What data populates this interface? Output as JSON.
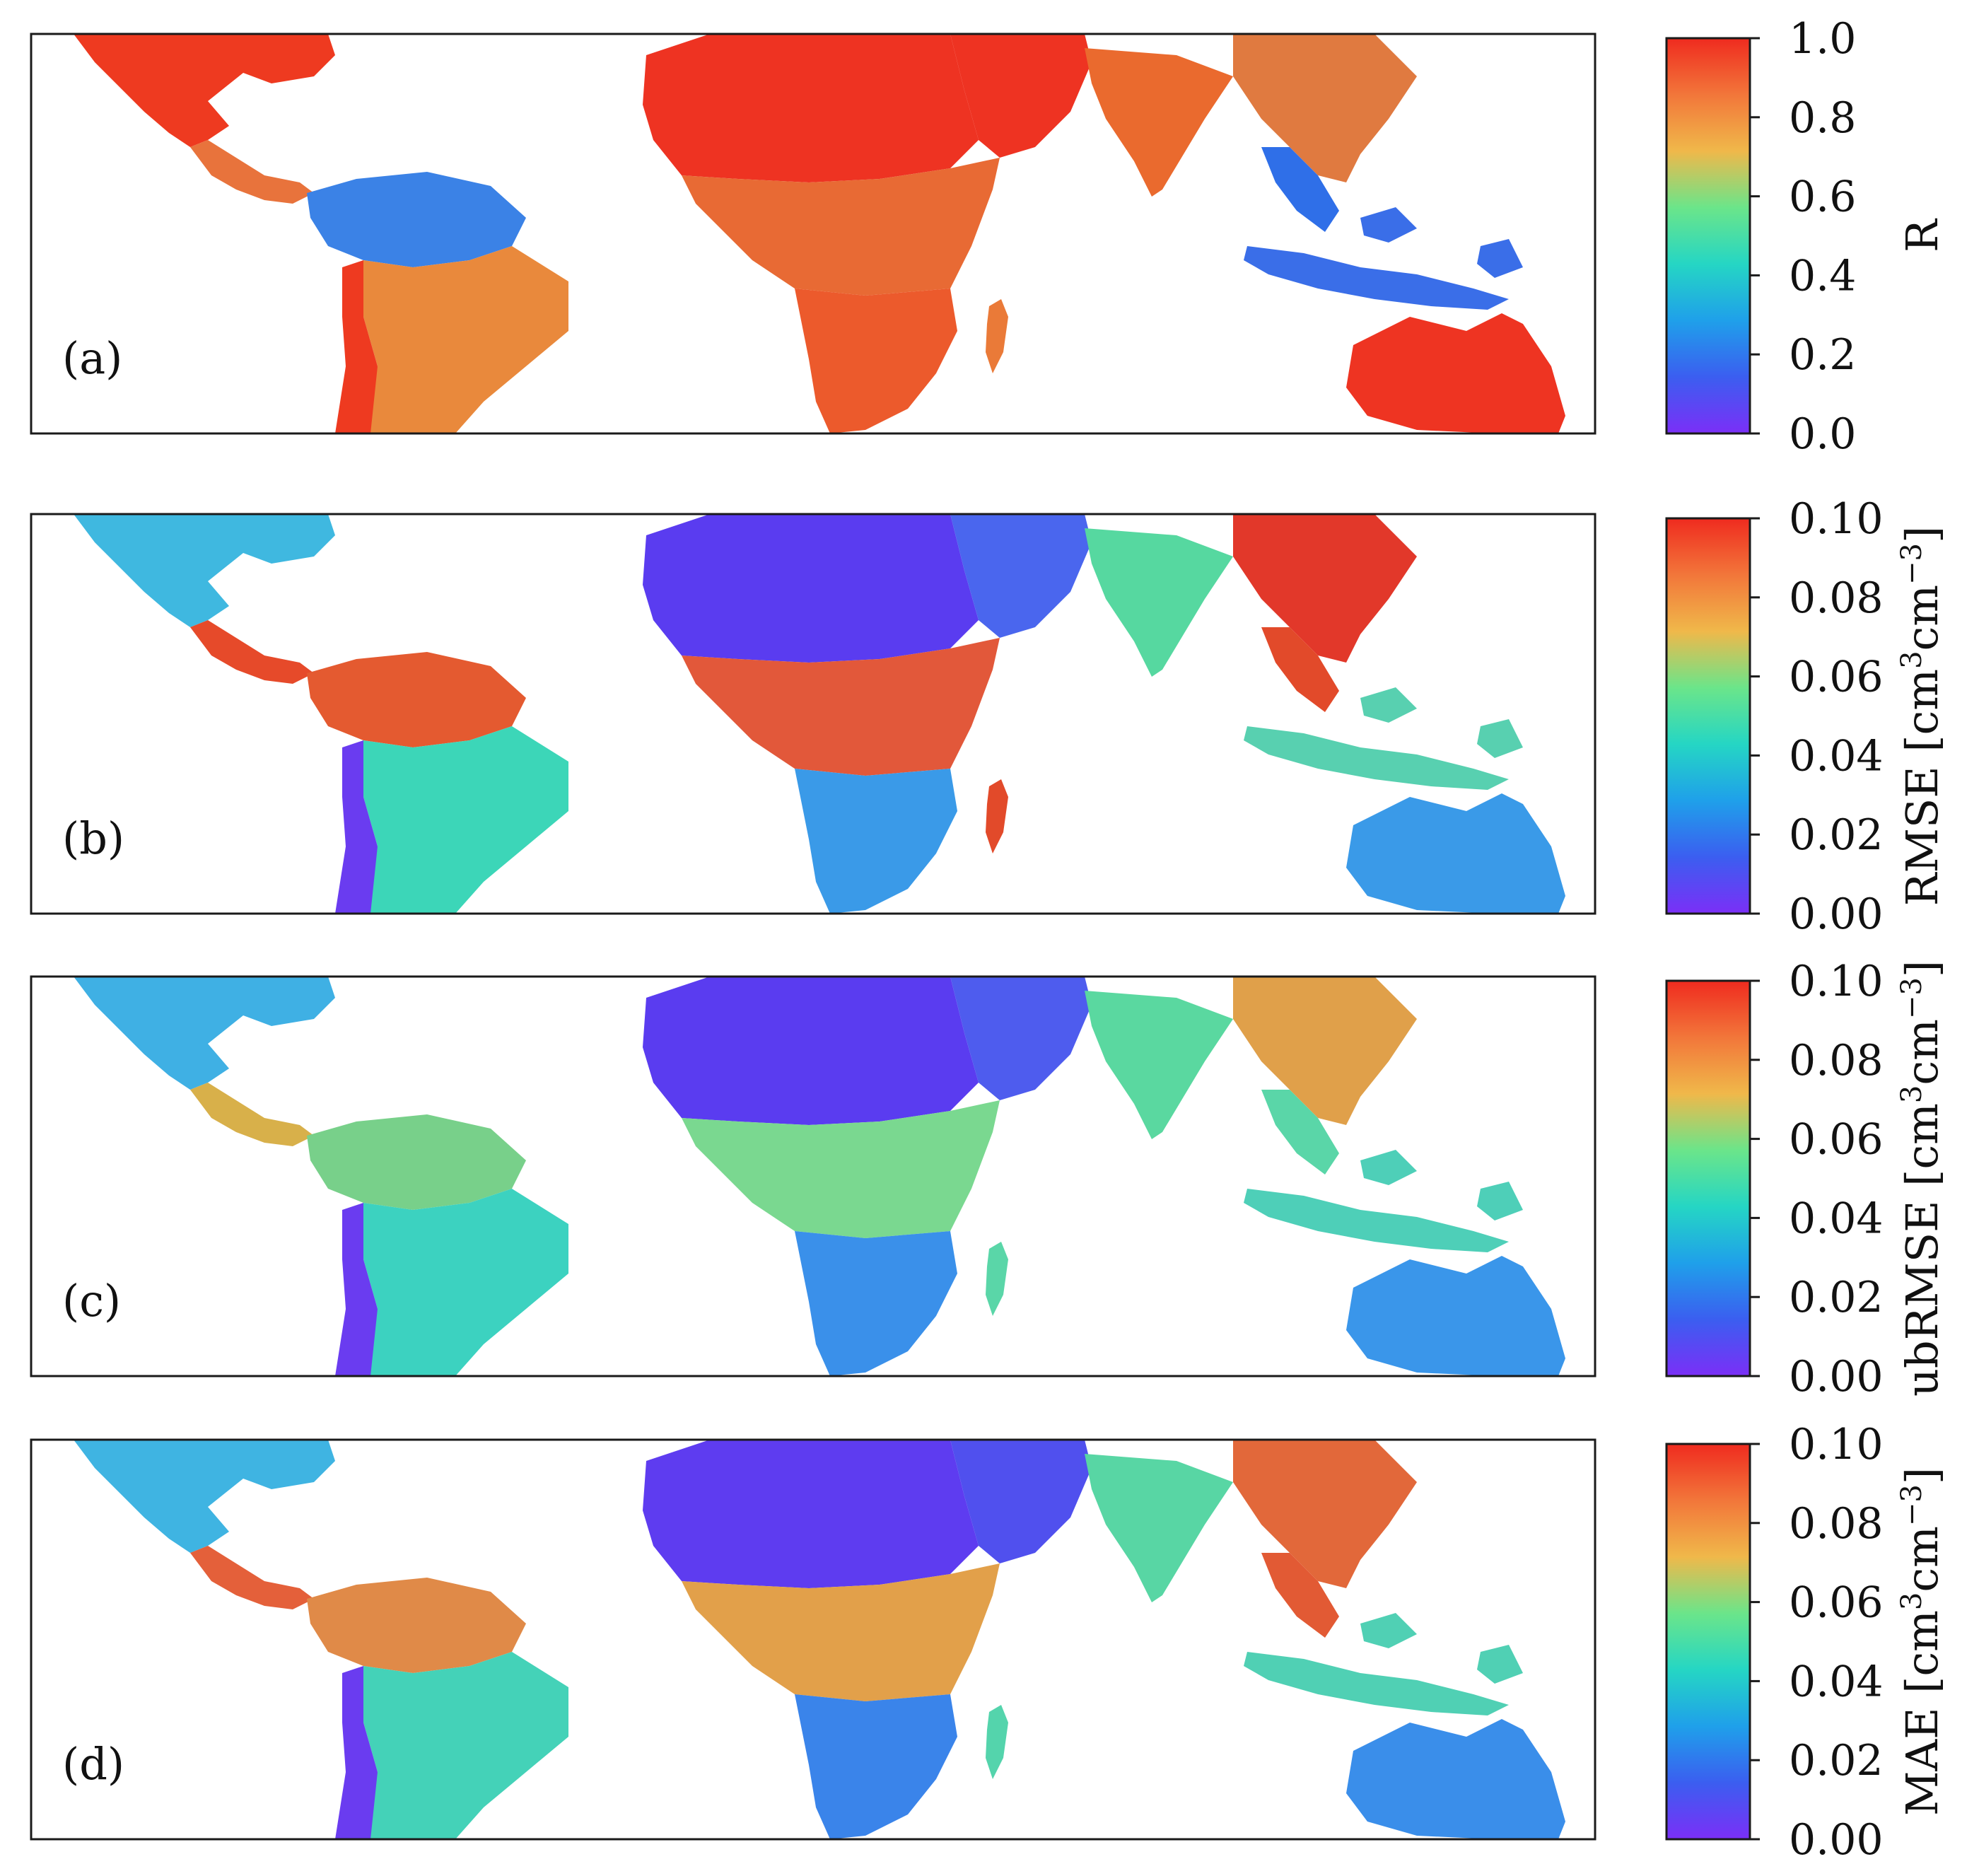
{
  "figure": {
    "panels": [
      {
        "id": "a",
        "label": "(a)",
        "metric": "R",
        "colorbar": {
          "title": "R",
          "title_parts": [],
          "ticks": [
            "0.0",
            "0.2",
            "0.4",
            "0.6",
            "0.8",
            "1.0"
          ],
          "range": [
            0.0,
            1.0
          ]
        },
        "land_tint": {
          "north_america": "#ee3a20",
          "central_america": "#e8733c",
          "south_america_north": "#3b82e6",
          "south_america_south": "#e9893c",
          "patagonia": "#ee3a20",
          "sahara": "#ee3322",
          "central_africa": "#e86a34",
          "southern_africa": "#ec5a2c",
          "madagascar": "#ea7a38",
          "arabia": "#ee3322",
          "india": "#ea6a2e",
          "east_asia": "#e07a40",
          "southeast_asia": "#2f6fe8",
          "indonesia": "#3a6ee8",
          "australia": "#ee3422"
        }
      },
      {
        "id": "b",
        "label": "(b)",
        "metric": "RMSE",
        "colorbar": {
          "title": "RMSE [cm³cm⁻³]",
          "title_parts": [
            {
              "text": "RMSE [cm",
              "sup": false
            },
            {
              "text": "3",
              "sup": true
            },
            {
              "text": "cm",
              "sup": false
            },
            {
              "text": "−3",
              "sup": true
            },
            {
              "text": "]",
              "sup": false
            }
          ],
          "ticks": [
            "0.00",
            "0.02",
            "0.04",
            "0.06",
            "0.08",
            "0.10"
          ],
          "range": [
            0.0,
            0.1
          ]
        },
        "land_tint": {
          "north_america": "#3fb8e0",
          "central_america": "#e64a2a",
          "south_america_north": "#e45a30",
          "south_america_south": "#3cd6b8",
          "patagonia": "#6a3cf0",
          "sahara": "#5a3cf0",
          "central_africa": "#e2583a",
          "southern_africa": "#3a9ae8",
          "madagascar": "#e24a2a",
          "arabia": "#4a66ee",
          "india": "#56d8a0",
          "east_asia": "#e2382a",
          "southeast_asia": "#e24a2a",
          "indonesia": "#58d0b0",
          "australia": "#3a9ae8"
        }
      },
      {
        "id": "c",
        "label": "(c)",
        "metric": "ubRMSE",
        "colorbar": {
          "title": "ubRMSE [cm³cm⁻³]",
          "title_parts": [
            {
              "text": "ubRMSE [cm",
              "sup": false
            },
            {
              "text": "3",
              "sup": true
            },
            {
              "text": "cm",
              "sup": false
            },
            {
              "text": "−3",
              "sup": true
            },
            {
              "text": "]",
              "sup": false
            }
          ],
          "ticks": [
            "0.00",
            "0.02",
            "0.04",
            "0.06",
            "0.08",
            "0.10"
          ],
          "range": [
            0.0,
            0.1
          ]
        },
        "land_tint": {
          "north_america": "#3fb0e4",
          "central_america": "#d8b04a",
          "south_america_north": "#78d08a",
          "south_america_south": "#3cd2c0",
          "patagonia": "#6a3cf0",
          "sahara": "#5a3cf0",
          "central_africa": "#7ad890",
          "southern_africa": "#3a90ea",
          "madagascar": "#5ad6a8",
          "arabia": "#4e5cee",
          "india": "#5ad8a0",
          "east_asia": "#e0a04a",
          "southeast_asia": "#5ad6a8",
          "indonesia": "#4ecfb8",
          "australia": "#3a96ea"
        }
      },
      {
        "id": "d",
        "label": "(d)",
        "metric": "MAE",
        "colorbar": {
          "title": "MAE [cm³cm⁻³]",
          "title_parts": [
            {
              "text": "MAE [cm",
              "sup": false
            },
            {
              "text": "3",
              "sup": true
            },
            {
              "text": "cm",
              "sup": false
            },
            {
              "text": "−3",
              "sup": true
            },
            {
              "text": "]",
              "sup": false
            }
          ],
          "ticks": [
            "0.00",
            "0.02",
            "0.04",
            "0.06",
            "0.08",
            "0.10"
          ],
          "range": [
            0.0,
            0.1
          ]
        },
        "land_tint": {
          "north_america": "#3fb4e2",
          "central_america": "#e4603a",
          "south_america_north": "#e08a48",
          "south_america_south": "#44d2b8",
          "patagonia": "#6a3cf0",
          "sahara": "#5e3cf0",
          "central_africa": "#e2a04a",
          "southern_africa": "#3a84ea",
          "madagascar": "#54d4ac",
          "arabia": "#5050ee",
          "india": "#58d6a4",
          "east_asia": "#e2683a",
          "southeast_asia": "#e25a34",
          "indonesia": "#50d0b4",
          "australia": "#3a8eea"
        }
      }
    ],
    "colormap": [
      "#7b2ff7",
      "#3b5ef0",
      "#1fa0ea",
      "#25d6c4",
      "#6be58a",
      "#f0b84a",
      "#f2763a",
      "#ef2b1f"
    ],
    "colormap_name": "rainbow"
  }
}
